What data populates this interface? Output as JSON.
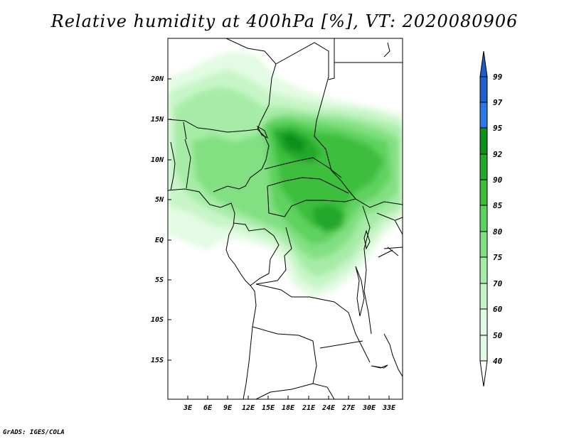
{
  "title": "Relative humidity at 400hPa [%], VT: 2020080906",
  "footer": "GrADS: IGES/COLA",
  "map": {
    "lat_labels": [
      "20N",
      "15N",
      "10N",
      "5N",
      "EQ",
      "5S",
      "10S",
      "15S"
    ],
    "lon_labels": [
      "3E",
      "6E",
      "9E",
      "12E",
      "15E",
      "18E",
      "21E",
      "24E",
      "27E",
      "30E",
      "33E"
    ]
  },
  "colorbar": {
    "unit": "%",
    "levels": [
      "99",
      "97",
      "95",
      "92",
      "90",
      "85",
      "80",
      "75",
      "70",
      "60",
      "50",
      "40"
    ],
    "colors": [
      "#1f5fd0",
      "#2a78e6",
      "#4a98f0",
      "#0d8f1a",
      "#22a82a",
      "#3cbe3c",
      "#5ed25e",
      "#82e082",
      "#a6eca6",
      "#c7f5c7",
      "#e3fbe3",
      "#ffffff"
    ],
    "top_arrow_color": "#1e5bc8",
    "bottom_arrow_color": "#ffffff"
  }
}
